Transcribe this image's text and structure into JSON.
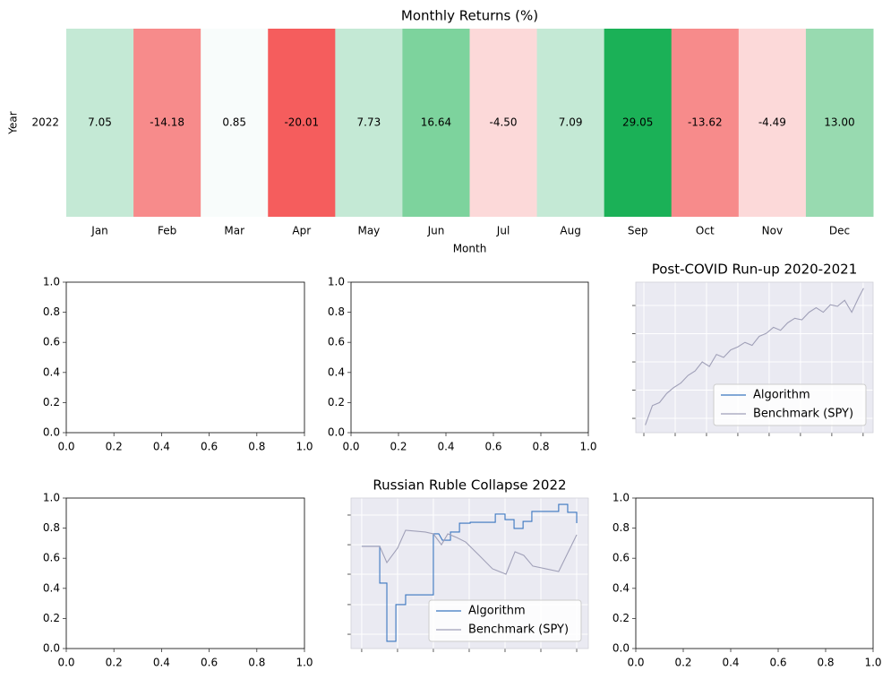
{
  "chart_data": [
    {
      "type": "heatmap",
      "title": "Monthly Returns (%)",
      "x_label": "Month",
      "y_label": "Year",
      "categories": [
        "Jan",
        "Feb",
        "Mar",
        "Apr",
        "May",
        "Jun",
        "Jul",
        "Aug",
        "Sep",
        "Oct",
        "Nov",
        "Dec"
      ],
      "rows": [
        "2022"
      ],
      "values": [
        7.05,
        -14.18,
        0.85,
        -20.01,
        7.73,
        16.64,
        -4.5,
        7.09,
        29.05,
        -13.62,
        -4.49,
        13
      ],
      "value_labels": [
        "7.05",
        "-14.18",
        "0.85",
        "-20.01",
        "7.73",
        "16.64",
        "-4.50",
        "7.09",
        "29.05",
        "-13.62",
        "-4.49",
        "13.00"
      ],
      "colors": [
        "#c4e9d5",
        "#f78b8b",
        "#f8fcfb",
        "#f55d5d",
        "#c4e9d5",
        "#7dd39d",
        "#fcd9d9",
        "#c4e9d5",
        "#1bb157",
        "#f78b8b",
        "#fcd9d9",
        "#98dab0"
      ]
    },
    {
      "type": "empty",
      "xlim": [
        0,
        1
      ],
      "ylim": [
        0,
        1
      ],
      "xticks": [
        {
          "value": 0,
          "label": "0.0"
        },
        {
          "value": 0.2,
          "label": "0.2"
        },
        {
          "value": 0.4,
          "label": "0.4"
        },
        {
          "value": 0.6,
          "label": "0.6"
        },
        {
          "value": 0.8,
          "label": "0.8"
        },
        {
          "value": 1,
          "label": "1.0"
        }
      ],
      "yticks": [
        {
          "value": 0,
          "label": "0.0"
        },
        {
          "value": 0.2,
          "label": "0.2"
        },
        {
          "value": 0.4,
          "label": "0.4"
        },
        {
          "value": 0.6,
          "label": "0.6"
        },
        {
          "value": 0.8,
          "label": "0.8"
        },
        {
          "value": 1,
          "label": "1.0"
        }
      ]
    },
    {
      "type": "empty",
      "xlim": [
        0,
        1
      ],
      "ylim": [
        0,
        1
      ],
      "xticks": [
        {
          "value": 0,
          "label": "0.0"
        },
        {
          "value": 0.2,
          "label": "0.2"
        },
        {
          "value": 0.4,
          "label": "0.4"
        },
        {
          "value": 0.6,
          "label": "0.6"
        },
        {
          "value": 0.8,
          "label": "0.8"
        },
        {
          "value": 1,
          "label": "1.0"
        }
      ],
      "yticks": [
        {
          "value": 0,
          "label": "0.0"
        },
        {
          "value": 0.2,
          "label": "0.2"
        },
        {
          "value": 0.4,
          "label": "0.4"
        },
        {
          "value": 0.6,
          "label": "0.6"
        },
        {
          "value": 0.8,
          "label": "0.8"
        },
        {
          "value": 1,
          "label": "1.0"
        }
      ]
    },
    {
      "type": "line",
      "title": "Post-COVID Run-up 2020-2021",
      "grid": true,
      "tick_labels": false,
      "legend": "lower right",
      "xlim": [
        0,
        1
      ],
      "ylim": [
        0,
        1
      ],
      "xticks": [
        0.034,
        0.166,
        0.298,
        0.43,
        0.562,
        0.694,
        0.826,
        0.958
      ],
      "yticks": [
        0.095,
        0.283,
        0.47,
        0.658,
        0.845
      ],
      "series": [
        {
          "name": "Algorithm",
          "color": "#3a76c0",
          "x": [],
          "values": []
        },
        {
          "name": "Benchmark (SPY)",
          "color": "#a0a0b8",
          "x": [
            0.04,
            0.07,
            0.1,
            0.13,
            0.16,
            0.19,
            0.22,
            0.25,
            0.28,
            0.31,
            0.34,
            0.37,
            0.4,
            0.43,
            0.46,
            0.49,
            0.52,
            0.55,
            0.58,
            0.61,
            0.64,
            0.67,
            0.7,
            0.73,
            0.76,
            0.79,
            0.82,
            0.85,
            0.88,
            0.91,
            0.94,
            0.96
          ],
          "values": [
            0.05,
            0.18,
            0.2,
            0.26,
            0.3,
            0.33,
            0.38,
            0.41,
            0.47,
            0.44,
            0.52,
            0.5,
            0.55,
            0.57,
            0.6,
            0.58,
            0.64,
            0.66,
            0.7,
            0.68,
            0.73,
            0.76,
            0.75,
            0.8,
            0.83,
            0.8,
            0.85,
            0.84,
            0.88,
            0.8,
            0.9,
            0.96
          ]
        }
      ]
    },
    {
      "type": "empty",
      "xlim": [
        0,
        1
      ],
      "ylim": [
        0,
        1
      ],
      "xticks": [
        {
          "value": 0,
          "label": "0.0"
        },
        {
          "value": 0.2,
          "label": "0.2"
        },
        {
          "value": 0.4,
          "label": "0.4"
        },
        {
          "value": 0.6,
          "label": "0.6"
        },
        {
          "value": 0.8,
          "label": "0.8"
        },
        {
          "value": 1,
          "label": "1.0"
        }
      ],
      "yticks": [
        {
          "value": 0,
          "label": "0.0"
        },
        {
          "value": 0.2,
          "label": "0.2"
        },
        {
          "value": 0.4,
          "label": "0.4"
        },
        {
          "value": 0.6,
          "label": "0.6"
        },
        {
          "value": 0.8,
          "label": "0.8"
        },
        {
          "value": 1,
          "label": "1.0"
        }
      ]
    },
    {
      "type": "line",
      "title": "Russian Ruble Collapse 2022",
      "grid": true,
      "tick_labels": false,
      "legend": "lower right",
      "xlim": [
        0,
        1
      ],
      "ylim": [
        0,
        1
      ],
      "xticks": [
        0.045,
        0.196,
        0.347,
        0.498,
        0.649,
        0.8,
        0.951
      ],
      "yticks": [
        0.095,
        0.292,
        0.494,
        0.69,
        0.887
      ],
      "series": [
        {
          "name": "Algorithm",
          "color": "#3a76c0",
          "x": [
            0.045,
            0.121,
            0.121,
            0.151,
            0.151,
            0.189,
            0.189,
            0.23,
            0.23,
            0.347,
            0.347,
            0.37,
            0.385,
            0.419,
            0.419,
            0.457,
            0.457,
            0.502,
            0.502,
            0.608,
            0.608,
            0.649,
            0.649,
            0.687,
            0.687,
            0.725,
            0.725,
            0.762,
            0.762,
            0.875,
            0.875,
            0.913,
            0.913,
            0.951,
            0.951
          ],
          "values": [
            0.679,
            0.679,
            0.435,
            0.435,
            0.048,
            0.048,
            0.292,
            0.292,
            0.357,
            0.357,
            0.762,
            0.762,
            0.72,
            0.72,
            0.774,
            0.774,
            0.833,
            0.833,
            0.839,
            0.839,
            0.893,
            0.893,
            0.857,
            0.857,
            0.798,
            0.798,
            0.845,
            0.845,
            0.911,
            0.911,
            0.958,
            0.958,
            0.905,
            0.905,
            0.833
          ]
        },
        {
          "name": "Benchmark (SPY)",
          "color": "#a0a0b8",
          "x": [
            0.045,
            0.121,
            0.151,
            0.196,
            0.23,
            0.313,
            0.347,
            0.381,
            0.408,
            0.445,
            0.483,
            0.54,
            0.596,
            0.653,
            0.691,
            0.728,
            0.766,
            0.875,
            0.951
          ],
          "values": [
            0.679,
            0.679,
            0.571,
            0.667,
            0.786,
            0.774,
            0.762,
            0.69,
            0.762,
            0.738,
            0.708,
            0.619,
            0.53,
            0.494,
            0.643,
            0.619,
            0.548,
            0.512,
            0.756
          ]
        }
      ]
    },
    {
      "type": "empty",
      "xlim": [
        0,
        1
      ],
      "ylim": [
        0,
        1
      ],
      "xticks": [
        {
          "value": 0,
          "label": "0.0"
        },
        {
          "value": 0.2,
          "label": "0.2"
        },
        {
          "value": 0.4,
          "label": "0.4"
        },
        {
          "value": 0.6,
          "label": "0.6"
        },
        {
          "value": 0.8,
          "label": "0.8"
        },
        {
          "value": 1,
          "label": "1.0"
        }
      ],
      "yticks": [
        {
          "value": 0,
          "label": "0.0"
        },
        {
          "value": 0.2,
          "label": "0.2"
        },
        {
          "value": 0.4,
          "label": "0.4"
        },
        {
          "value": 0.6,
          "label": "0.6"
        },
        {
          "value": 0.8,
          "label": "0.8"
        },
        {
          "value": 1,
          "label": "1.0"
        }
      ]
    }
  ]
}
